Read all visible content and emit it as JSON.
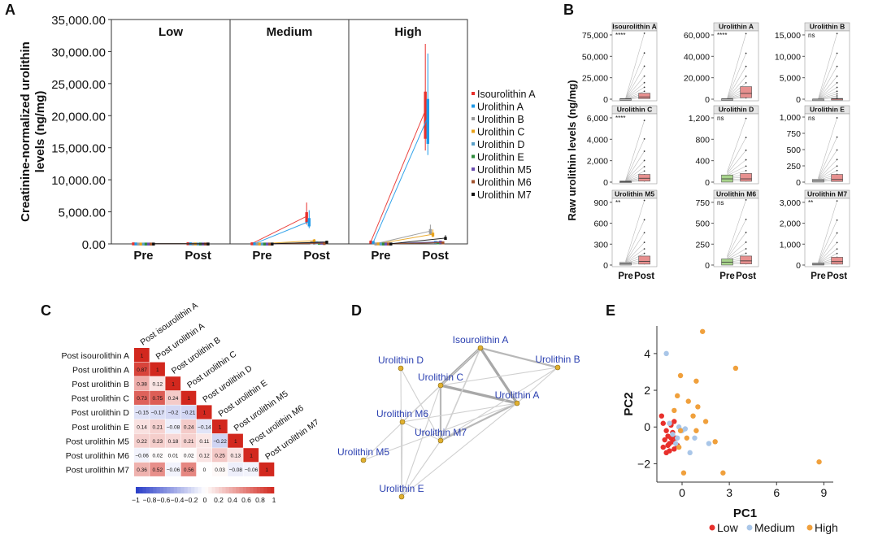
{
  "panels": {
    "A": {
      "label": "A",
      "chart_data": {
        "type": "box",
        "ylabel": "Creatinine-normalized urolithin levels (ng/mg)",
        "ylim": [
          0,
          35000
        ],
        "yticks": [
          "0.00",
          "5,000.00",
          "10,000.00",
          "15,000.00",
          "20,000.00",
          "25,000.00",
          "30,000.00",
          "35,000.00"
        ],
        "facets": [
          "Low",
          "Medium",
          "High"
        ],
        "categories": [
          "Pre",
          "Post"
        ],
        "legend_position": "right",
        "series": [
          {
            "name": "Isourolithin A",
            "color": "#e8302c",
            "values": {
              "Low": [
                40,
                60
              ],
              "Medium": [
                50,
                4300
              ],
              "High": [
                300,
                20800
              ]
            }
          },
          {
            "name": "Urolithin A",
            "color": "#1f9ae8",
            "values": {
              "Low": [
                30,
                50
              ],
              "Medium": [
                40,
                3500
              ],
              "High": [
                250,
                19800
              ]
            }
          },
          {
            "name": "Urolithin B",
            "color": "#9a9a9a",
            "values": {
              "Low": [
                10,
                20
              ],
              "Medium": [
                15,
                200
              ],
              "High": [
                30,
                2000
              ]
            }
          },
          {
            "name": "Urolithin C",
            "color": "#e8a21a",
            "values": {
              "Low": [
                10,
                30
              ],
              "Medium": [
                20,
                500
              ],
              "High": [
                40,
                1500
              ]
            }
          },
          {
            "name": "Urolithin D",
            "color": "#5aa0c8",
            "values": {
              "Low": [
                10,
                20
              ],
              "Medium": [
                15,
                200
              ],
              "High": [
                20,
                300
              ]
            }
          },
          {
            "name": "Urolithin E",
            "color": "#2e8b3a",
            "values": {
              "Low": [
                10,
                20
              ],
              "Medium": [
                10,
                150
              ],
              "High": [
                20,
                200
              ]
            }
          },
          {
            "name": "Urolithin M5",
            "color": "#6a4cb0",
            "values": {
              "Low": [
                10,
                20
              ],
              "Medium": [
                10,
                150
              ],
              "High": [
                20,
                300
              ]
            }
          },
          {
            "name": "Urolithin M6",
            "color": "#a0522d",
            "values": {
              "Low": [
                10,
                20
              ],
              "Medium": [
                10,
                100
              ],
              "High": [
                20,
                200
              ]
            }
          },
          {
            "name": "Urolithin M7",
            "color": "#111111",
            "values": {
              "Low": [
                10,
                20
              ],
              "Medium": [
                10,
                300
              ],
              "High": [
                20,
                900
              ]
            }
          }
        ]
      }
    },
    "B": {
      "label": "B",
      "chart_data": {
        "type": "box",
        "ylabel": "Raw urolithin levels (ng/mg)",
        "categories": [
          "Pre",
          "Post"
        ],
        "facets": [
          {
            "title": "Isourolithin A",
            "sig": "****",
            "yticks": [
              "0",
              "25,000",
              "50,000",
              "75,000"
            ],
            "ymax": 90000,
            "pre_median": 300,
            "post_median": 3000,
            "post_q3": 8000,
            "post_max": 88000,
            "pre_fill": "#cccccc"
          },
          {
            "title": "Urolithin A",
            "sig": "****",
            "yticks": [
              "0",
              "20,000",
              "40,000",
              "60,000"
            ],
            "ymax": 70000,
            "pre_median": 200,
            "post_median": 6000,
            "post_q3": 13000,
            "post_max": 68000,
            "pre_fill": "#cccccc"
          },
          {
            "title": "Urolithin B",
            "sig": "ns",
            "yticks": [
              "0",
              "5,000",
              "10,000",
              "15,000"
            ],
            "ymax": 18000,
            "pre_median": 20,
            "post_median": 60,
            "post_q3": 200,
            "post_max": 17500,
            "pre_fill": "#cccccc"
          },
          {
            "title": "Urolithin C",
            "sig": "****",
            "yticks": [
              "0",
              "2,000",
              "4,000",
              "6,000"
            ],
            "ymax": 7000,
            "pre_median": 50,
            "post_median": 400,
            "post_q3": 800,
            "post_max": 6400,
            "pre_fill": "#cccccc"
          },
          {
            "title": "Urolithin D",
            "sig": "ns",
            "yticks": [
              "0",
              "400",
              "800",
              "1,200"
            ],
            "ymax": 1250,
            "pre_median": 60,
            "post_median": 60,
            "post_q3": 160,
            "post_max": 1180,
            "pre_fill": "#a8d48c"
          },
          {
            "title": "Urolithin E",
            "sig": "ns",
            "yticks": [
              "0",
              "250",
              "500",
              "750",
              "1,000"
            ],
            "ymax": 1050,
            "pre_median": 20,
            "post_median": 40,
            "post_q3": 120,
            "post_max": 1000,
            "pre_fill": "#cccccc"
          },
          {
            "title": "Urolithin M5",
            "sig": "**",
            "yticks": [
              "0",
              "300",
              "600",
              "900"
            ],
            "ymax": 1100,
            "pre_median": 20,
            "post_median": 60,
            "post_q3": 150,
            "post_max": 1080,
            "pre_fill": "#cccccc"
          },
          {
            "title": "Urolithin M6",
            "sig": "ns",
            "yticks": [
              "0",
              "250",
              "500",
              "750"
            ],
            "ymax": 950,
            "pre_median": 40,
            "post_median": 60,
            "post_q3": 130,
            "post_max": 940,
            "pre_fill": "#a8d48c"
          },
          {
            "title": "Urolithin M7",
            "sig": "**",
            "yticks": [
              "0",
              "1,000",
              "2,000",
              "3,000"
            ],
            "ymax": 3800,
            "pre_median": 50,
            "post_median": 200,
            "post_q3": 450,
            "post_max": 3700,
            "pre_fill": "#cccccc"
          }
        ]
      }
    },
    "C": {
      "label": "C",
      "chart_data": {
        "type": "heatmap",
        "variables": [
          "Post isourolithin A",
          "Post urolithin A",
          "Post urolithin B",
          "Post urolithin C",
          "Post urolithin D",
          "Post urolithin E",
          "Post urolithin M5",
          "Post urolithin M6",
          "Post urolithin M7"
        ],
        "values": [
          [
            "1"
          ],
          [
            "0.87",
            "1"
          ],
          [
            "0.38",
            "0.12",
            "1"
          ],
          [
            "0.73",
            "0.75",
            "0.24",
            "1"
          ],
          [
            "−0.15",
            "−0.17",
            "−0.2",
            "−0.21",
            "1"
          ],
          [
            "0.14",
            "0.21",
            "−0.08",
            "0.24",
            "−0.14",
            "1"
          ],
          [
            "0.22",
            "0.23",
            "0.18",
            "0.21",
            "0.11",
            "−0.22",
            "1"
          ],
          [
            "−0.06",
            "0.02",
            "0.01",
            "0.02",
            "0.12",
            "0.25",
            "0.13",
            "1"
          ],
          [
            "0.36",
            "0.52",
            "−0.06",
            "0.56",
            "0",
            "0.03",
            "−0.08",
            "−0.06",
            "1"
          ]
        ],
        "colorbar_ticks": [
          "−1",
          "−0.8",
          "−0.6",
          "−0.4",
          "−0.2",
          "0",
          "0.2",
          "0.4",
          "0.6",
          "0.8",
          "1"
        ]
      }
    },
    "D": {
      "label": "D",
      "chart_data": {
        "type": "network",
        "nodes": [
          "Isourolithin A",
          "Urolithin B",
          "Urolithin D",
          "Urolithin C",
          "Urolithin A",
          "Urolithin M6",
          "Urolithin M7",
          "Urolithin M5",
          "Urolithin E"
        ],
        "edges": [
          [
            "Isourolithin A",
            "Urolithin C",
            3
          ],
          [
            "Isourolithin A",
            "Urolithin A",
            3
          ],
          [
            "Urolithin C",
            "Urolithin A",
            3
          ],
          [
            "Isourolithin A",
            "Urolithin B",
            2
          ],
          [
            "Urolithin C",
            "Urolithin M7",
            2
          ],
          [
            "Urolithin A",
            "Urolithin M7",
            2
          ],
          [
            "Isourolithin A",
            "Urolithin M7",
            1.5
          ],
          [
            "Urolithin A",
            "Urolithin B",
            1
          ],
          [
            "Urolithin C",
            "Urolithin B",
            1
          ],
          [
            "Urolithin C",
            "Urolithin M6",
            1
          ],
          [
            "Urolithin A",
            "Urolithin M6",
            1
          ],
          [
            "Urolithin M6",
            "Urolithin M7",
            1
          ],
          [
            "Urolithin C",
            "Urolithin E",
            1
          ],
          [
            "Urolithin A",
            "Urolithin E",
            1
          ],
          [
            "Urolithin M7",
            "Urolithin E",
            1
          ],
          [
            "Urolithin M5",
            "Urolithin A",
            1
          ],
          [
            "Urolithin M5",
            "Urolithin C",
            1
          ],
          [
            "Urolithin D",
            "Urolithin E",
            1
          ],
          [
            "Urolithin D",
            "Urolithin M7",
            1
          ],
          [
            "Urolithin B",
            "Urolithin M7",
            1
          ],
          [
            "Urolithin M6",
            "Urolithin E",
            1
          ],
          [
            "Isourolithin A",
            "Urolithin M6",
            1
          ]
        ]
      }
    },
    "E": {
      "label": "E",
      "chart_data": {
        "type": "scatter",
        "xlabel": "PC1",
        "ylabel": "PC2",
        "xlim": [
          -1.6,
          9.6
        ],
        "ylim": [
          -3.0,
          5.5
        ],
        "xticks": [
          0,
          3,
          6,
          9
        ],
        "yticks": [
          -2,
          0,
          2,
          4
        ],
        "legend_position": "bottom",
        "series": [
          {
            "name": "Low",
            "color": "#e8302c",
            "points": [
              [
                -1.3,
                0.6
              ],
              [
                -1.2,
                0.2
              ],
              [
                -1.0,
                -0.2
              ],
              [
                -0.9,
                -0.5
              ],
              [
                -1.1,
                -0.7
              ],
              [
                -0.8,
                -0.9
              ],
              [
                -0.7,
                -0.6
              ],
              [
                -0.6,
                -0.3
              ],
              [
                -0.9,
                -1.0
              ],
              [
                -0.5,
                -1.2
              ],
              [
                -0.8,
                -1.3
              ],
              [
                -0.6,
                -0.8
              ],
              [
                -1.2,
                -1.1
              ],
              [
                -0.4,
                -0.6
              ],
              [
                -0.7,
                0.1
              ],
              [
                -1.0,
                -1.4
              ],
              [
                -0.5,
                0.3
              ],
              [
                -0.3,
                -1.0
              ]
            ]
          },
          {
            "name": "Medium",
            "color": "#a9c6e8",
            "points": [
              [
                -1.0,
                4.0
              ],
              [
                -0.8,
                0.2
              ],
              [
                -0.6,
                -0.4
              ],
              [
                -0.3,
                -0.6
              ],
              [
                0.0,
                -0.2
              ],
              [
                -0.2,
                0.0
              ],
              [
                0.2,
                -0.1
              ],
              [
                0.5,
                -1.4
              ],
              [
                0.8,
                -0.6
              ],
              [
                1.7,
                -0.9
              ],
              [
                -0.4,
                -0.9
              ]
            ]
          },
          {
            "name": "High",
            "color": "#f0a03c",
            "points": [
              [
                1.3,
                5.2
              ],
              [
                3.4,
                3.2
              ],
              [
                -0.1,
                2.8
              ],
              [
                0.9,
                2.5
              ],
              [
                -0.3,
                1.7
              ],
              [
                0.4,
                1.4
              ],
              [
                1.0,
                1.1
              ],
              [
                -0.5,
                0.9
              ],
              [
                0.7,
                0.6
              ],
              [
                1.5,
                0.3
              ],
              [
                -0.1,
                -0.2
              ],
              [
                0.3,
                -0.6
              ],
              [
                0.9,
                -0.2
              ],
              [
                2.1,
                -0.8
              ],
              [
                2.6,
                -2.5
              ],
              [
                0.1,
                -2.5
              ],
              [
                8.7,
                -1.9
              ],
              [
                -0.2,
                -1.1
              ]
            ]
          }
        ]
      }
    }
  }
}
